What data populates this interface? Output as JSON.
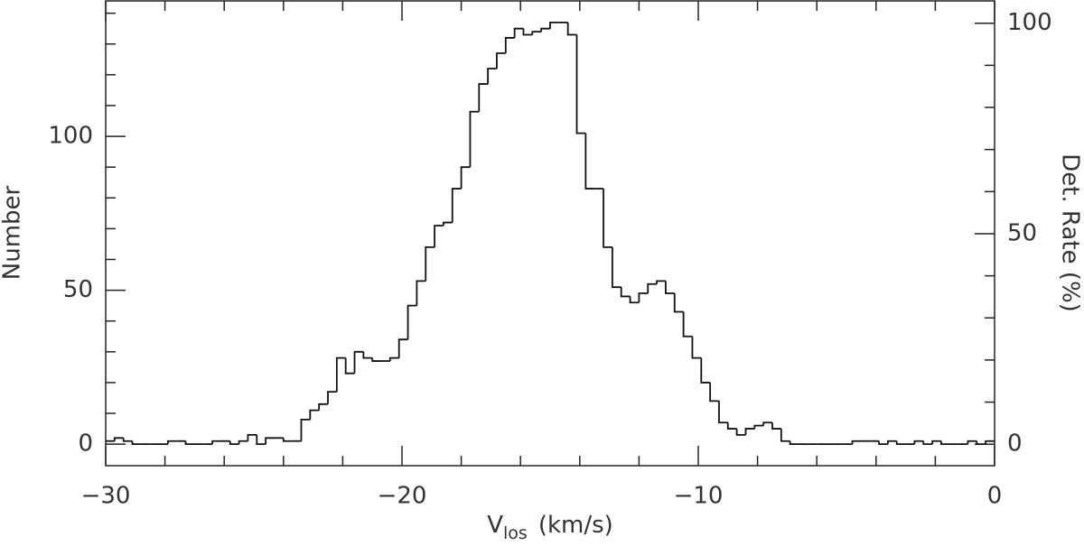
{
  "chart_data": {
    "type": "histogram",
    "xlabel": {
      "main": "V",
      "sub": "los",
      "rest": "(km/s)"
    },
    "ylabel": "Number",
    "y2label": "Det. Rate (%)",
    "bins": [
      -30,
      -29.7,
      -29.4,
      -29.1,
      -28.8,
      -28.5,
      -28.2,
      -27.9,
      -27.6,
      -27.3,
      -27,
      -26.7,
      -26.4,
      -26.1,
      -25.8,
      -25.5,
      -25.2,
      -24.9,
      -24.6,
      -24.3,
      -24,
      -23.7,
      -23.4,
      -23.1,
      -22.8,
      -22.5,
      -22.2,
      -21.9,
      -21.6,
      -21.3,
      -21,
      -20.7,
      -20.4,
      -20.1,
      -19.8,
      -19.5,
      -19.2,
      -18.9,
      -18.6,
      -18.3,
      -18,
      -17.7,
      -17.4,
      -17.1,
      -16.8,
      -16.5,
      -16.2,
      -15.9,
      -15.6,
      -15.3,
      -15,
      -14.7,
      -14.4,
      -14.1,
      -13.8,
      -13.5,
      -13.2,
      -12.9,
      -12.6,
      -12.3,
      -12,
      -11.7,
      -11.4,
      -11.1,
      -10.8,
      -10.5,
      -10.2,
      -9.9,
      -9.6,
      -9.3,
      -9,
      -8.7,
      -8.4,
      -8.1,
      -7.8,
      -7.5,
      -7.2,
      -6.9,
      -6.6,
      -6.3,
      -6,
      -5.7,
      -5.4,
      -5.1,
      -4.8,
      -4.5,
      -4.2,
      -3.9,
      -3.6,
      -3.3,
      -3,
      -2.7,
      -2.4,
      -2.1,
      -1.8,
      -1.5,
      -1.2,
      -0.9,
      -0.6,
      -0.3,
      0
    ],
    "values": [
      1,
      2,
      1,
      0,
      0,
      0,
      0,
      1,
      1,
      0,
      0,
      0,
      1,
      1,
      0,
      1,
      3,
      0,
      2,
      2,
      1,
      1,
      8,
      11,
      13,
      17,
      28,
      23,
      30,
      28,
      27,
      27,
      28,
      34,
      45,
      53,
      64,
      71,
      72,
      83,
      90,
      108,
      117,
      122,
      127,
      132,
      135,
      133,
      134,
      135,
      137,
      137,
      133,
      101,
      83,
      83,
      64,
      51,
      48,
      46,
      49,
      52,
      53,
      49,
      43,
      35,
      28,
      20,
      14,
      7,
      5,
      3,
      5,
      6,
      7,
      5,
      1,
      0,
      0,
      0,
      0,
      0,
      0,
      0,
      1,
      1,
      1,
      0,
      1,
      0,
      0,
      1,
      0,
      1,
      0,
      0,
      0,
      1,
      0,
      1
    ],
    "color": "#111111",
    "xlim": [
      -30,
      0
    ],
    "xticks": [
      {
        "value": -30,
        "label": "−30"
      },
      {
        "value": -20,
        "label": "−20"
      },
      {
        "value": -10,
        "label": "−10"
      },
      0
    ],
    "xticks_minor": [
      -28,
      -26,
      -24,
      -22,
      -18,
      -16,
      -14,
      -12,
      -8,
      -6,
      -4,
      -2
    ],
    "ylim": [
      -7,
      144
    ],
    "yticks": [
      0,
      50,
      100
    ],
    "yticks_minor": [
      10,
      20,
      30,
      40,
      60,
      70,
      80,
      90,
      110,
      120,
      130,
      140
    ],
    "y2lim": [
      -5.1,
      105.3
    ],
    "y2ticks": [
      0,
      50,
      100
    ],
    "y2ticks_minor": [
      10,
      20,
      30,
      40,
      60,
      70,
      80,
      90
    ]
  }
}
